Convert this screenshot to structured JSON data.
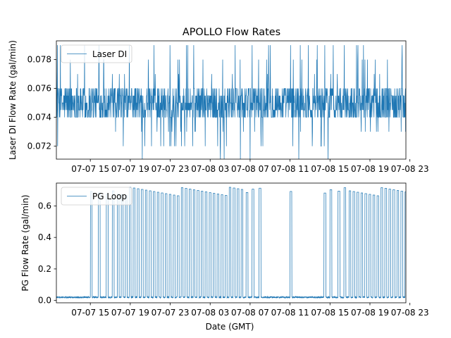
{
  "chart_data": [
    {
      "type": "line",
      "title": "APOLLO Flow Rates",
      "xlabel": "",
      "ylabel": "Laser DI Flow Rate (gal/min)",
      "ylim": [
        0.0711,
        0.0793
      ],
      "xlim_hours": [
        11.6,
        46.6
      ],
      "yticks": [
        0.072,
        0.074,
        0.076,
        0.078
      ],
      "ytick_labels": [
        "0.072",
        "0.074",
        "0.076",
        "0.078"
      ],
      "xtick_hours": [
        15,
        19,
        23,
        27,
        31,
        35,
        39,
        43,
        47
      ],
      "xtick_labels": [
        "07-07 15",
        "07-07 19",
        "07-07 23",
        "07-08 03",
        "07-08 07",
        "07-08 11",
        "07-08 15",
        "07-08 19",
        "07-08 23"
      ],
      "legend": {
        "position": "top-left",
        "entries": [
          "Laser DI"
        ]
      },
      "grid": false,
      "series": [
        {
          "name": "Laser DI",
          "color": "#1f77b4",
          "base_range": [
            0.074,
            0.076
          ],
          "spike_min": 0.071,
          "spike_max": 0.079
        }
      ]
    },
    {
      "type": "line",
      "title": "",
      "xlabel": "Date (GMT)",
      "ylabel": "PG Flow Rate (gal/min)",
      "ylim": [
        -0.015,
        0.745
      ],
      "xlim_hours": [
        11.6,
        46.6
      ],
      "yticks": [
        0.0,
        0.2,
        0.4,
        0.6
      ],
      "ytick_labels": [
        "0.0",
        "0.2",
        "0.4",
        "0.6"
      ],
      "xtick_hours": [
        15,
        19,
        23,
        27,
        31,
        35,
        39,
        43,
        47
      ],
      "xtick_labels": [
        "07-07 15",
        "07-07 19",
        "07-07 23",
        "07-08 03",
        "07-08 07",
        "07-08 11",
        "07-08 15",
        "07-08 19",
        "07-08 23"
      ],
      "legend": {
        "position": "top-left",
        "entries": [
          "PG Loop"
        ]
      },
      "grid": false,
      "series": [
        {
          "name": "PG Loop",
          "color": "#1f77b4",
          "baseline": 0.02,
          "peak_range": [
            0.64,
            0.72
          ],
          "pulse_hours": [
            15.0,
            15.8,
            16.6,
            17.2,
            17.7,
            18.1,
            18.5,
            18.9,
            19.3,
            19.7,
            20.1,
            20.5,
            20.9,
            21.3,
            21.7,
            22.1,
            22.5,
            22.9,
            23.3,
            23.7,
            24.1,
            24.5,
            24.9,
            25.3,
            25.7,
            26.1,
            26.5,
            26.9,
            27.3,
            27.7,
            28.1,
            28.5,
            28.9,
            29.3,
            29.7,
            30.1,
            30.6,
            31.2,
            31.9,
            35.0,
            38.4,
            39.0,
            39.8,
            40.4,
            40.9,
            41.3,
            41.7,
            42.1,
            42.5,
            42.9,
            43.3,
            43.7,
            44.1,
            44.5,
            44.9,
            45.3,
            45.7,
            46.1,
            46.5
          ]
        }
      ]
    }
  ]
}
